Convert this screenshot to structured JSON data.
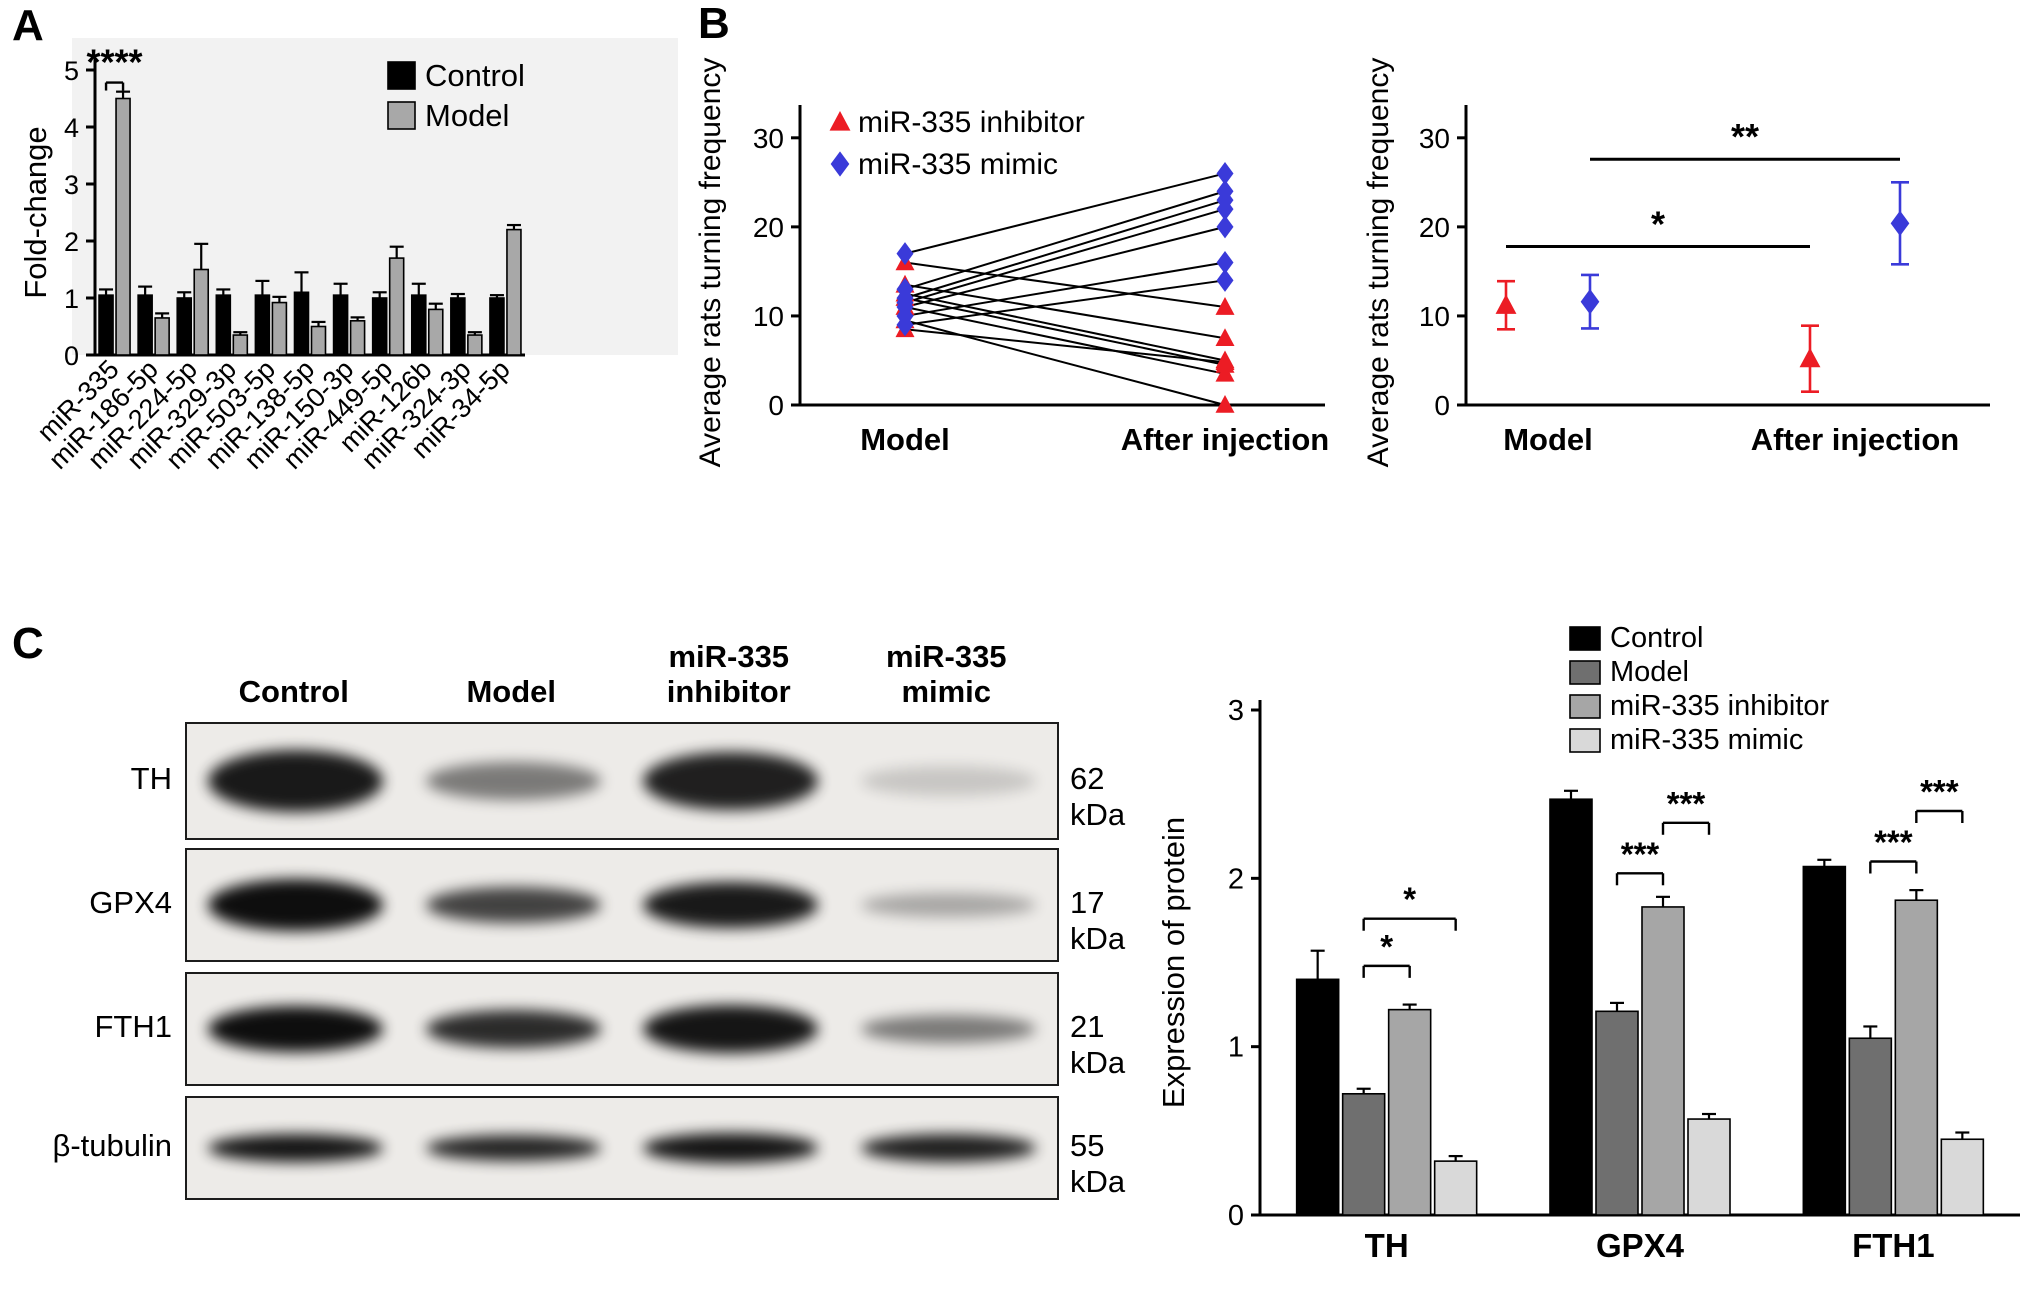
{
  "panels": {
    "A": "A",
    "B": "B",
    "C": "C"
  },
  "chart_data": [
    {
      "id": "panel-a",
      "type": "bar",
      "title": "",
      "xlabel": "",
      "ylabel": "Fold-change",
      "ylim": [
        0,
        5
      ],
      "yticks": [
        0,
        1,
        2,
        3,
        4,
        5
      ],
      "grid": false,
      "legend_position": "top-right-inside",
      "categories": [
        "miR-335",
        "miR-186-5p",
        "miR-224-5p",
        "miR-329-3p",
        "miR-503-5p",
        "miR-138-5p",
        "miR-150-3p",
        "miR-449-5p",
        "miR-126b",
        "miR-324-3p",
        "miR-34-5p"
      ],
      "series": [
        {
          "name": "Control",
          "color": "#000000",
          "values": [
            1.05,
            1.05,
            1.0,
            1.05,
            1.05,
            1.1,
            1.05,
            1.0,
            1.05,
            1.0,
            1.0
          ],
          "errors": [
            0.1,
            0.15,
            0.1,
            0.1,
            0.25,
            0.35,
            0.2,
            0.1,
            0.2,
            0.07,
            0.05
          ]
        },
        {
          "name": "Model",
          "color": "#a8a8a8",
          "values": [
            4.5,
            0.65,
            1.5,
            0.35,
            0.92,
            0.5,
            0.6,
            1.7,
            0.8,
            0.35,
            2.2
          ],
          "errors": [
            0.12,
            0.08,
            0.45,
            0.05,
            0.1,
            0.08,
            0.06,
            0.2,
            0.1,
            0.05,
            0.08
          ]
        }
      ],
      "annotations": [
        {
          "text": "****",
          "category": 0,
          "from_series": 0,
          "to_series": 1,
          "y": 4.78
        }
      ]
    },
    {
      "id": "panel-b-left",
      "type": "scatter",
      "subtype": "paired-lines",
      "ylabel": "Average rats turning frequency",
      "ylim": [
        0,
        32
      ],
      "yticks": [
        0,
        10,
        20,
        30
      ],
      "legend_position": "top-left-inside",
      "categories": [
        "Model",
        "After injection"
      ],
      "series": [
        {
          "name": "miR-335 inhibitor",
          "color": "#ec1c24",
          "marker": "triangle",
          "pairs": [
            [
              16,
              11
            ],
            [
              13.5,
              7.5
            ],
            [
              12.5,
              5
            ],
            [
              12,
              4.5
            ],
            [
              11,
              3.5
            ],
            [
              9.5,
              0
            ],
            [
              8.5,
              4.8
            ]
          ]
        },
        {
          "name": "miR-335 mimic",
          "color": "#3a3ad9",
          "marker": "diamond",
          "pairs": [
            [
              17,
              26
            ],
            [
              13,
              24
            ],
            [
              12,
              23
            ],
            [
              11.5,
              22
            ],
            [
              11,
              20
            ],
            [
              10,
              16
            ],
            [
              9,
              14
            ]
          ]
        }
      ]
    },
    {
      "id": "panel-b-right",
      "type": "scatter",
      "subtype": "mean-error",
      "ylabel": "Average rats turning frequency",
      "ylim": [
        0,
        32
      ],
      "yticks": [
        0,
        10,
        20,
        30
      ],
      "categories": [
        "Model",
        "After injection"
      ],
      "series": [
        {
          "name": "miR-335 inhibitor",
          "color": "#ec1c24",
          "marker": "triangle",
          "values": [
            11.2,
            5.2
          ],
          "errors": [
            2.7,
            3.7
          ]
        },
        {
          "name": "miR-335 mimic",
          "color": "#3a3ad9",
          "marker": "diamond",
          "values": [
            11.6,
            20.4
          ],
          "errors": [
            3.0,
            4.6
          ]
        }
      ],
      "annotations": [
        {
          "text": "*",
          "y": 17.8,
          "from_series": 0,
          "from_cat": 0,
          "to_series": 0,
          "to_cat": 1
        },
        {
          "text": "**",
          "y": 27.6,
          "from_series": 1,
          "from_cat": 0,
          "to_series": 1,
          "to_cat": 1
        }
      ]
    },
    {
      "id": "panel-c",
      "type": "bar",
      "ylabel": "Expression of protein",
      "ylim": [
        0,
        3
      ],
      "yticks": [
        0,
        1,
        2,
        3
      ],
      "grid": false,
      "legend_position": "top-inside",
      "categories": [
        "TH",
        "GPX4",
        "FTH1"
      ],
      "series": [
        {
          "name": "Control",
          "color": "#000000",
          "values": [
            1.4,
            2.47,
            2.07
          ],
          "errors": [
            0.17,
            0.05,
            0.04
          ]
        },
        {
          "name": "Model",
          "color": "#6f6f6f",
          "values": [
            0.72,
            1.21,
            1.05
          ],
          "errors": [
            0.03,
            0.05,
            0.07
          ]
        },
        {
          "name": "miR-335 inhibitor",
          "color": "#a6a6a6",
          "values": [
            1.22,
            1.83,
            1.87
          ],
          "errors": [
            0.03,
            0.06,
            0.06
          ]
        },
        {
          "name": "miR-335 mimic",
          "color": "#d9d9d9",
          "values": [
            0.32,
            0.57,
            0.45
          ],
          "errors": [
            0.03,
            0.03,
            0.04
          ]
        }
      ],
      "annotations": [
        {
          "text": "*",
          "category": 0,
          "from_series": 1,
          "to_series": 2,
          "y": 1.48
        },
        {
          "text": "*",
          "category": 0,
          "from_series": 1,
          "to_series": 3,
          "y": 1.76
        },
        {
          "text": "***",
          "category": 1,
          "from_series": 1,
          "to_series": 2,
          "y": 2.03
        },
        {
          "text": "***",
          "category": 1,
          "from_series": 2,
          "to_series": 3,
          "y": 2.33
        },
        {
          "text": "***",
          "category": 2,
          "from_series": 1,
          "to_series": 2,
          "y": 2.1
        },
        {
          "text": "***",
          "category": 2,
          "from_series": 2,
          "to_series": 3,
          "y": 2.4
        }
      ]
    }
  ],
  "western_blot": {
    "lane_headers": [
      "Control",
      "Model",
      "miR-335\ninhibitor",
      "miR-335\nmimic"
    ],
    "rows": [
      {
        "label": "TH",
        "size": "62 kDa",
        "intensities": [
          0.93,
          0.5,
          0.9,
          0.16
        ],
        "band_heights": [
          62,
          38,
          58,
          30
        ]
      },
      {
        "label": "GPX4",
        "size": "17 kDa",
        "intensities": [
          0.98,
          0.75,
          0.93,
          0.3
        ],
        "band_heights": [
          52,
          36,
          46,
          24
        ]
      },
      {
        "label": "FTH1",
        "size": "21 kDa",
        "intensities": [
          0.98,
          0.85,
          0.95,
          0.5
        ],
        "band_heights": [
          46,
          38,
          48,
          28
        ]
      },
      {
        "label": "β-tubulin",
        "size": "55 kDa",
        "intensities": [
          0.95,
          0.88,
          0.95,
          0.9
        ],
        "band_heights": [
          28,
          26,
          30,
          28
        ]
      }
    ]
  }
}
